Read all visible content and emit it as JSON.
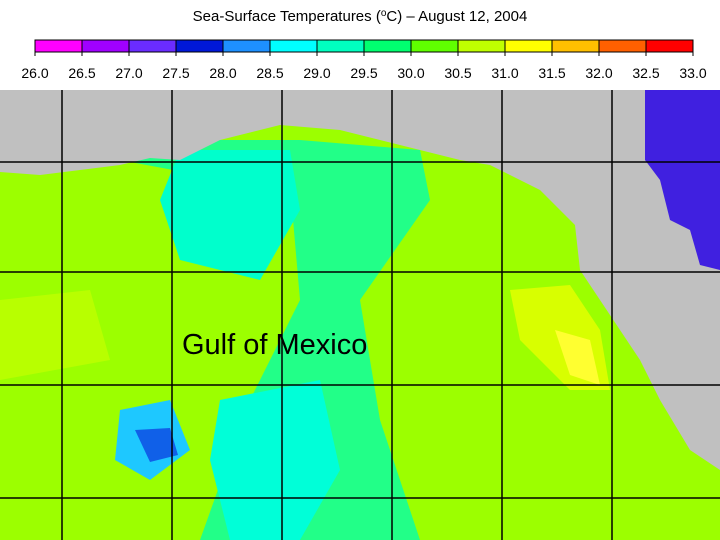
{
  "title": {
    "before": "Sea-Surface Temperatures (",
    "sup": "o",
    "after": "C) – August 12, 2004"
  },
  "colorbar": {
    "ticks": [
      {
        "value": 26,
        "label": "26.0"
      },
      {
        "value": 26.5,
        "label": "26.5"
      },
      {
        "value": 27,
        "label": "27.0"
      },
      {
        "value": 27.5,
        "label": "27.5"
      },
      {
        "value": 28,
        "label": "28.0"
      },
      {
        "value": 28.5,
        "label": "28.5"
      },
      {
        "value": 29,
        "label": "29.0"
      },
      {
        "value": 29.5,
        "label": "29.5"
      },
      {
        "value": 30,
        "label": "30.0"
      },
      {
        "value": 30.5,
        "label": "30.5"
      },
      {
        "value": 31,
        "label": "31.0"
      },
      {
        "value": 31.5,
        "label": "31.5"
      },
      {
        "value": 32,
        "label": "32.0"
      },
      {
        "value": 32.5,
        "label": "32.5"
      },
      {
        "value": 33,
        "label": "33.0"
      }
    ],
    "colors": [
      "#ff00ff",
      "#a000ff",
      "#6a2cff",
      "#0018d8",
      "#1e90ff",
      "#00ffff",
      "#00ffc0",
      "#00ff70",
      "#60ff00",
      "#c0ff00",
      "#ffff00",
      "#ffc000",
      "#ff6000",
      "#ff0000"
    ]
  },
  "map_label": "Gulf of Mexico"
}
